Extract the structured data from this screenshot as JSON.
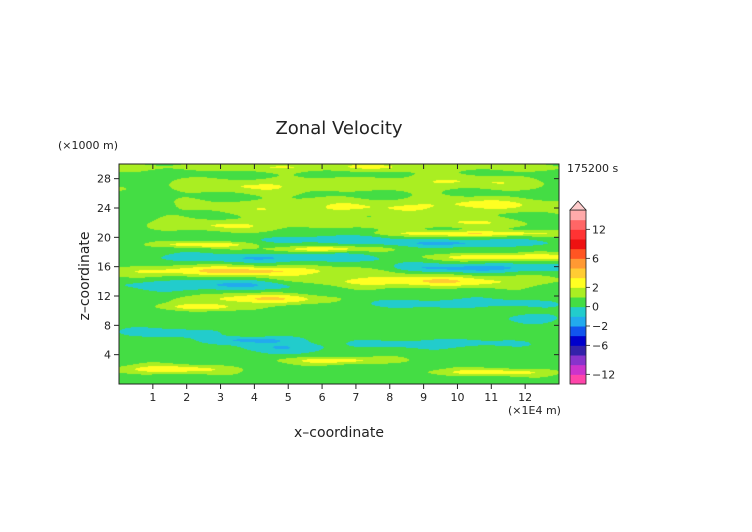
{
  "chart_data": {
    "type": "heatmap",
    "title": "Zonal Velocity",
    "xlabel": "x–coordinate",
    "ylabel": "z–coordinate",
    "x_unit": "(×1E4 m)",
    "y_unit": "(×1000 m)",
    "time_label": "175200 s",
    "xlim": [
      0,
      13
    ],
    "ylim": [
      0,
      30
    ],
    "x_ticks": [
      1,
      2,
      3,
      4,
      5,
      6,
      7,
      8,
      9,
      10,
      11,
      12
    ],
    "x_tick_labels": [
      "1",
      "2",
      "3",
      "4",
      "5",
      "6",
      "7",
      "8",
      "9",
      "10",
      "11",
      "12"
    ],
    "y_ticks": [
      4,
      8,
      12,
      16,
      20,
      24,
      28
    ],
    "y_tick_labels": [
      "4",
      "8",
      "12",
      "16",
      "20",
      "24",
      "28"
    ],
    "background_value": 0.5,
    "colorbar": {
      "levels": [
        -14,
        -12,
        -10,
        -8,
        -6,
        -4,
        -2,
        -1,
        0,
        1,
        2,
        3,
        4,
        6,
        8,
        10,
        12,
        14
      ],
      "colors": [
        "#ff44aa",
        "#cc33cc",
        "#8833cc",
        "#3322aa",
        "#0000cc",
        "#1155ee",
        "#22aaee",
        "#22cccc",
        "#44dd44",
        "#aaee22",
        "#ffff22",
        "#ffcc33",
        "#ff9933",
        "#ff5522",
        "#ee1111",
        "#ff3333",
        "#ff6666",
        "#ffaaaa"
      ],
      "tick_values": [
        12,
        6,
        2,
        0,
        -2,
        -6,
        -12
      ],
      "tick_labels": [
        "12",
        "6",
        "2",
        "0",
        "−2",
        "−6",
        "−12"
      ],
      "extend": "max"
    },
    "features": [
      {
        "x": 6.5,
        "z": 29.6,
        "hx": 7.0,
        "hz": 0.6,
        "v": 1.5
      },
      {
        "x": 4.0,
        "z": 27.0,
        "hx": 3.0,
        "hz": 1.0,
        "v": 1.5
      },
      {
        "x": 10.0,
        "z": 27.5,
        "hx": 3.0,
        "hz": 1.0,
        "v": 1.5
      },
      {
        "x": 6.0,
        "z": 24.0,
        "hx": 4.0,
        "hz": 1.2,
        "v": 1.5
      },
      {
        "x": 11.0,
        "z": 24.5,
        "hx": 2.5,
        "hz": 1.0,
        "v": 1.5
      },
      {
        "x": 3.0,
        "z": 21.6,
        "hx": 2.5,
        "hz": 0.8,
        "v": 1.5
      },
      {
        "x": 9.5,
        "z": 22.0,
        "hx": 3.0,
        "hz": 0.8,
        "v": 1.5
      },
      {
        "x": 6.2,
        "z": 19.7,
        "hx": 1.8,
        "hz": 0.6,
        "v": -1.3
      },
      {
        "x": 10.2,
        "z": 19.2,
        "hx": 2.2,
        "hz": 0.5,
        "v": -1.8
      },
      {
        "x": 10.5,
        "z": 20.5,
        "hx": 2.5,
        "hz": 0.4,
        "v": 2.5
      },
      {
        "x": 2.5,
        "z": 19.0,
        "hx": 1.5,
        "hz": 0.4,
        "v": 2.2
      },
      {
        "x": 6.0,
        "z": 18.4,
        "hx": 1.5,
        "hz": 0.4,
        "v": 2.2
      },
      {
        "x": 4.5,
        "z": 17.2,
        "hx": 3.8,
        "hz": 0.6,
        "v": -1.5
      },
      {
        "x": 11.5,
        "z": 17.3,
        "hx": 2.5,
        "hz": 0.5,
        "v": 2.5
      },
      {
        "x": 10.5,
        "z": 15.8,
        "hx": 2.5,
        "hz": 0.6,
        "v": -2.0
      },
      {
        "x": 3.5,
        "z": 15.4,
        "hx": 3.5,
        "hz": 0.7,
        "v": 2.8
      },
      {
        "x": 9.0,
        "z": 14.0,
        "hx": 3.5,
        "hz": 0.8,
        "v": 2.5
      },
      {
        "x": 3.0,
        "z": 13.5,
        "hx": 2.5,
        "hz": 0.7,
        "v": -1.8
      },
      {
        "x": 4.2,
        "z": 11.6,
        "hx": 2.0,
        "hz": 0.7,
        "v": 2.5
      },
      {
        "x": 10.0,
        "z": 11.0,
        "hx": 2.5,
        "hz": 0.6,
        "v": -1.3
      },
      {
        "x": 2.5,
        "z": 10.5,
        "hx": 1.5,
        "hz": 0.5,
        "v": 1.8
      },
      {
        "x": 12.3,
        "z": 9.0,
        "hx": 0.8,
        "hz": 0.6,
        "v": -1.3
      },
      {
        "x": 1.5,
        "z": 7.0,
        "hx": 1.5,
        "hz": 0.6,
        "v": -1.3
      },
      {
        "x": 4.0,
        "z": 6.0,
        "hx": 1.2,
        "hz": 0.5,
        "v": -1.8
      },
      {
        "x": 5.0,
        "z": 5.0,
        "hx": 1.5,
        "hz": 0.8,
        "v": -1.3
      },
      {
        "x": 9.5,
        "z": 5.5,
        "hx": 2.0,
        "hz": 0.6,
        "v": -1.3
      },
      {
        "x": 6.5,
        "z": 3.2,
        "hx": 1.5,
        "hz": 0.5,
        "v": 2.2
      },
      {
        "x": 1.5,
        "z": 2.0,
        "hx": 1.8,
        "hz": 0.6,
        "v": 2.2
      },
      {
        "x": 11.0,
        "z": 1.6,
        "hx": 2.0,
        "hz": 0.5,
        "v": 2.0
      }
    ]
  }
}
